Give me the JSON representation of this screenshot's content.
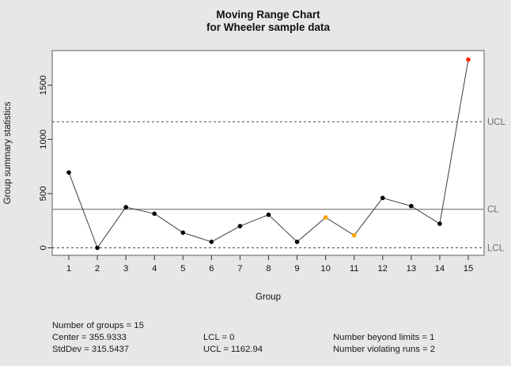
{
  "figure": {
    "background": "#e7e7e7"
  },
  "chart_data": {
    "type": "line",
    "title": "Moving Range Chart",
    "subtitle": "for Wheeler sample data",
    "xlabel": "Group",
    "ylabel": "Group summary statistics",
    "x": [
      1,
      2,
      3,
      4,
      5,
      6,
      7,
      8,
      9,
      10,
      11,
      12,
      13,
      14,
      15
    ],
    "values": [
      695,
      0,
      375,
      315,
      140,
      55,
      200,
      305,
      55,
      280,
      115,
      460,
      385,
      222,
      1737
    ],
    "point_colors": [
      "#000000",
      "#000000",
      "#000000",
      "#000000",
      "#000000",
      "#000000",
      "#000000",
      "#000000",
      "#000000",
      "#ffa500",
      "#ffa500",
      "#000000",
      "#000000",
      "#000000",
      "#ff2200"
    ],
    "center": 355.9333,
    "ucl": 1162.94,
    "lcl": 0,
    "ylim": [
      0,
      1800
    ],
    "yticks": [
      0,
      500,
      1000,
      1500
    ],
    "limit_labels": {
      "ucl": "UCL",
      "cl": "CL",
      "lcl": "LCL"
    },
    "grid": false,
    "legend": "none",
    "colors": {
      "series_line": "#3c3c3c",
      "center_line": "#8a8a8a",
      "limit_line": "#4a4a4a",
      "panel_border": "#7f7f7f",
      "panel_bg": "#ffffff",
      "tick_text": "#111111",
      "limit_label_text": "#6e6e6e"
    }
  },
  "footer": {
    "col1": [
      "Number of groups = 15",
      "Center = 355.9333",
      "StdDev = 315.5437"
    ],
    "col2": [
      "LCL = 0",
      "UCL = 1162.94"
    ],
    "col3": [
      "Number beyond limits = 1",
      "Number violating runs = 2"
    ]
  }
}
